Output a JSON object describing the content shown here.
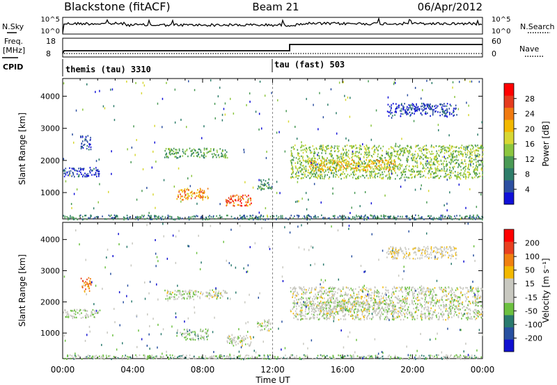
{
  "header": {
    "station": "Blackstone (fitACF)",
    "beam": "Beam 21",
    "date": "06/Apr/2012"
  },
  "noise_panel": {
    "left_label": "N.Sky",
    "right_label": "N.Search",
    "left_ticks": [
      "10^5",
      "10^0"
    ],
    "right_ticks": [
      "10^5",
      "10^0"
    ]
  },
  "freq_panel": {
    "left_label_1": "Freq.",
    "left_label_2": "[MHz]",
    "right_label": "Nave",
    "left_ticks": [
      "18",
      "8"
    ],
    "right_ticks": [
      "60",
      "0"
    ],
    "cpid_label": "CPID"
  },
  "cpid": [
    {
      "name": "themis (tau) 3310",
      "start_hour": 0.0
    },
    {
      "name": "tau (fast) 503",
      "start_hour": 12.0
    }
  ],
  "x_axis": {
    "label": "Time UT",
    "ticks": [
      "00:00",
      "04:00",
      "08:00",
      "12:00",
      "16:00",
      "20:00",
      "00:00"
    ],
    "range_hours": [
      0,
      24
    ]
  },
  "chart_data": [
    {
      "type": "heatmap",
      "name": "power",
      "ylabel": "Slant Range [km]",
      "ylim": [
        180,
        4550
      ],
      "yticks": [
        "4000",
        "3000",
        "2000",
        "1000"
      ],
      "colorbar_label": "Power [dB]",
      "colorbar_ticks": [
        "28",
        "24",
        "20",
        "16",
        "12",
        "8",
        "4"
      ],
      "colors": [
        "#1010d8",
        "#2c4fa0",
        "#2e7d6a",
        "#4a9a55",
        "#8cc63f",
        "#d7d733",
        "#f2b800",
        "#f07a10",
        "#e53b1e",
        "#ff0000"
      ],
      "features": [
        {
          "t0": 0.0,
          "t1": 2.1,
          "r0": 1500,
          "r1": 1800,
          "level": 0.1
        },
        {
          "t0": 1.0,
          "t1": 1.6,
          "r0": 2350,
          "r1": 2800,
          "level": 0.12
        },
        {
          "t0": 5.8,
          "t1": 9.4,
          "r0": 2100,
          "r1": 2400,
          "level": 0.35
        },
        {
          "t0": 6.5,
          "t1": 8.3,
          "r0": 800,
          "r1": 1150,
          "level": 0.72
        },
        {
          "t0": 9.3,
          "t1": 10.8,
          "r0": 600,
          "r1": 950,
          "level": 0.8
        },
        {
          "t0": 11.1,
          "t1": 11.9,
          "r0": 1100,
          "r1": 1450,
          "level": 0.3
        },
        {
          "t0": 13.0,
          "t1": 24.0,
          "r0": 1450,
          "r1": 2500,
          "level": 0.45
        },
        {
          "t0": 14.0,
          "t1": 19.0,
          "r0": 1700,
          "r1": 2050,
          "level": 0.62
        },
        {
          "t0": 18.5,
          "t1": 22.5,
          "r0": 3400,
          "r1": 3800,
          "level": 0.1
        },
        {
          "t0": 0.0,
          "t1": 24.0,
          "r0": 180,
          "r1": 320,
          "level": 0.25
        }
      ]
    },
    {
      "type": "heatmap",
      "name": "velocity",
      "ylabel": "Slant Range [km]",
      "ylim": [
        180,
        4550
      ],
      "yticks": [
        "4000",
        "3000",
        "2000",
        "1000"
      ],
      "colorbar_label": "Velocity [m s⁻¹]",
      "colorbar_ticks": [
        "200",
        "100",
        "50",
        "15",
        "-15",
        "-50",
        "-100",
        "-200"
      ],
      "colors": [
        "#1010d0",
        "#2850a0",
        "#2a7a6e",
        "#6cc040",
        "#c8c8c0",
        "#c8c8c0",
        "#f2b800",
        "#f08010",
        "#e84020",
        "#ff0000"
      ],
      "features": [
        {
          "t0": 0.0,
          "t1": 2.1,
          "r0": 1500,
          "r1": 1800,
          "level": 0.45
        },
        {
          "t0": 1.0,
          "t1": 1.6,
          "r0": 2350,
          "r1": 2800,
          "level": 0.72
        },
        {
          "t0": 5.8,
          "t1": 9.4,
          "r0": 2100,
          "r1": 2400,
          "level": 0.48
        },
        {
          "t0": 6.5,
          "t1": 8.3,
          "r0": 800,
          "r1": 1150,
          "level": 0.4
        },
        {
          "t0": 9.3,
          "t1": 10.8,
          "r0": 600,
          "r1": 950,
          "level": 0.48
        },
        {
          "t0": 11.1,
          "t1": 11.9,
          "r0": 1100,
          "r1": 1450,
          "level": 0.48
        },
        {
          "t0": 13.0,
          "t1": 24.0,
          "r0": 1450,
          "r1": 2500,
          "level": 0.48
        },
        {
          "t0": 14.0,
          "t1": 19.0,
          "r0": 1700,
          "r1": 2050,
          "level": 0.49
        },
        {
          "t0": 18.5,
          "t1": 22.5,
          "r0": 3400,
          "r1": 3800,
          "level": 0.55
        },
        {
          "t0": 0.0,
          "t1": 24.0,
          "r0": 180,
          "r1": 320,
          "level": 0.4
        }
      ]
    }
  ]
}
